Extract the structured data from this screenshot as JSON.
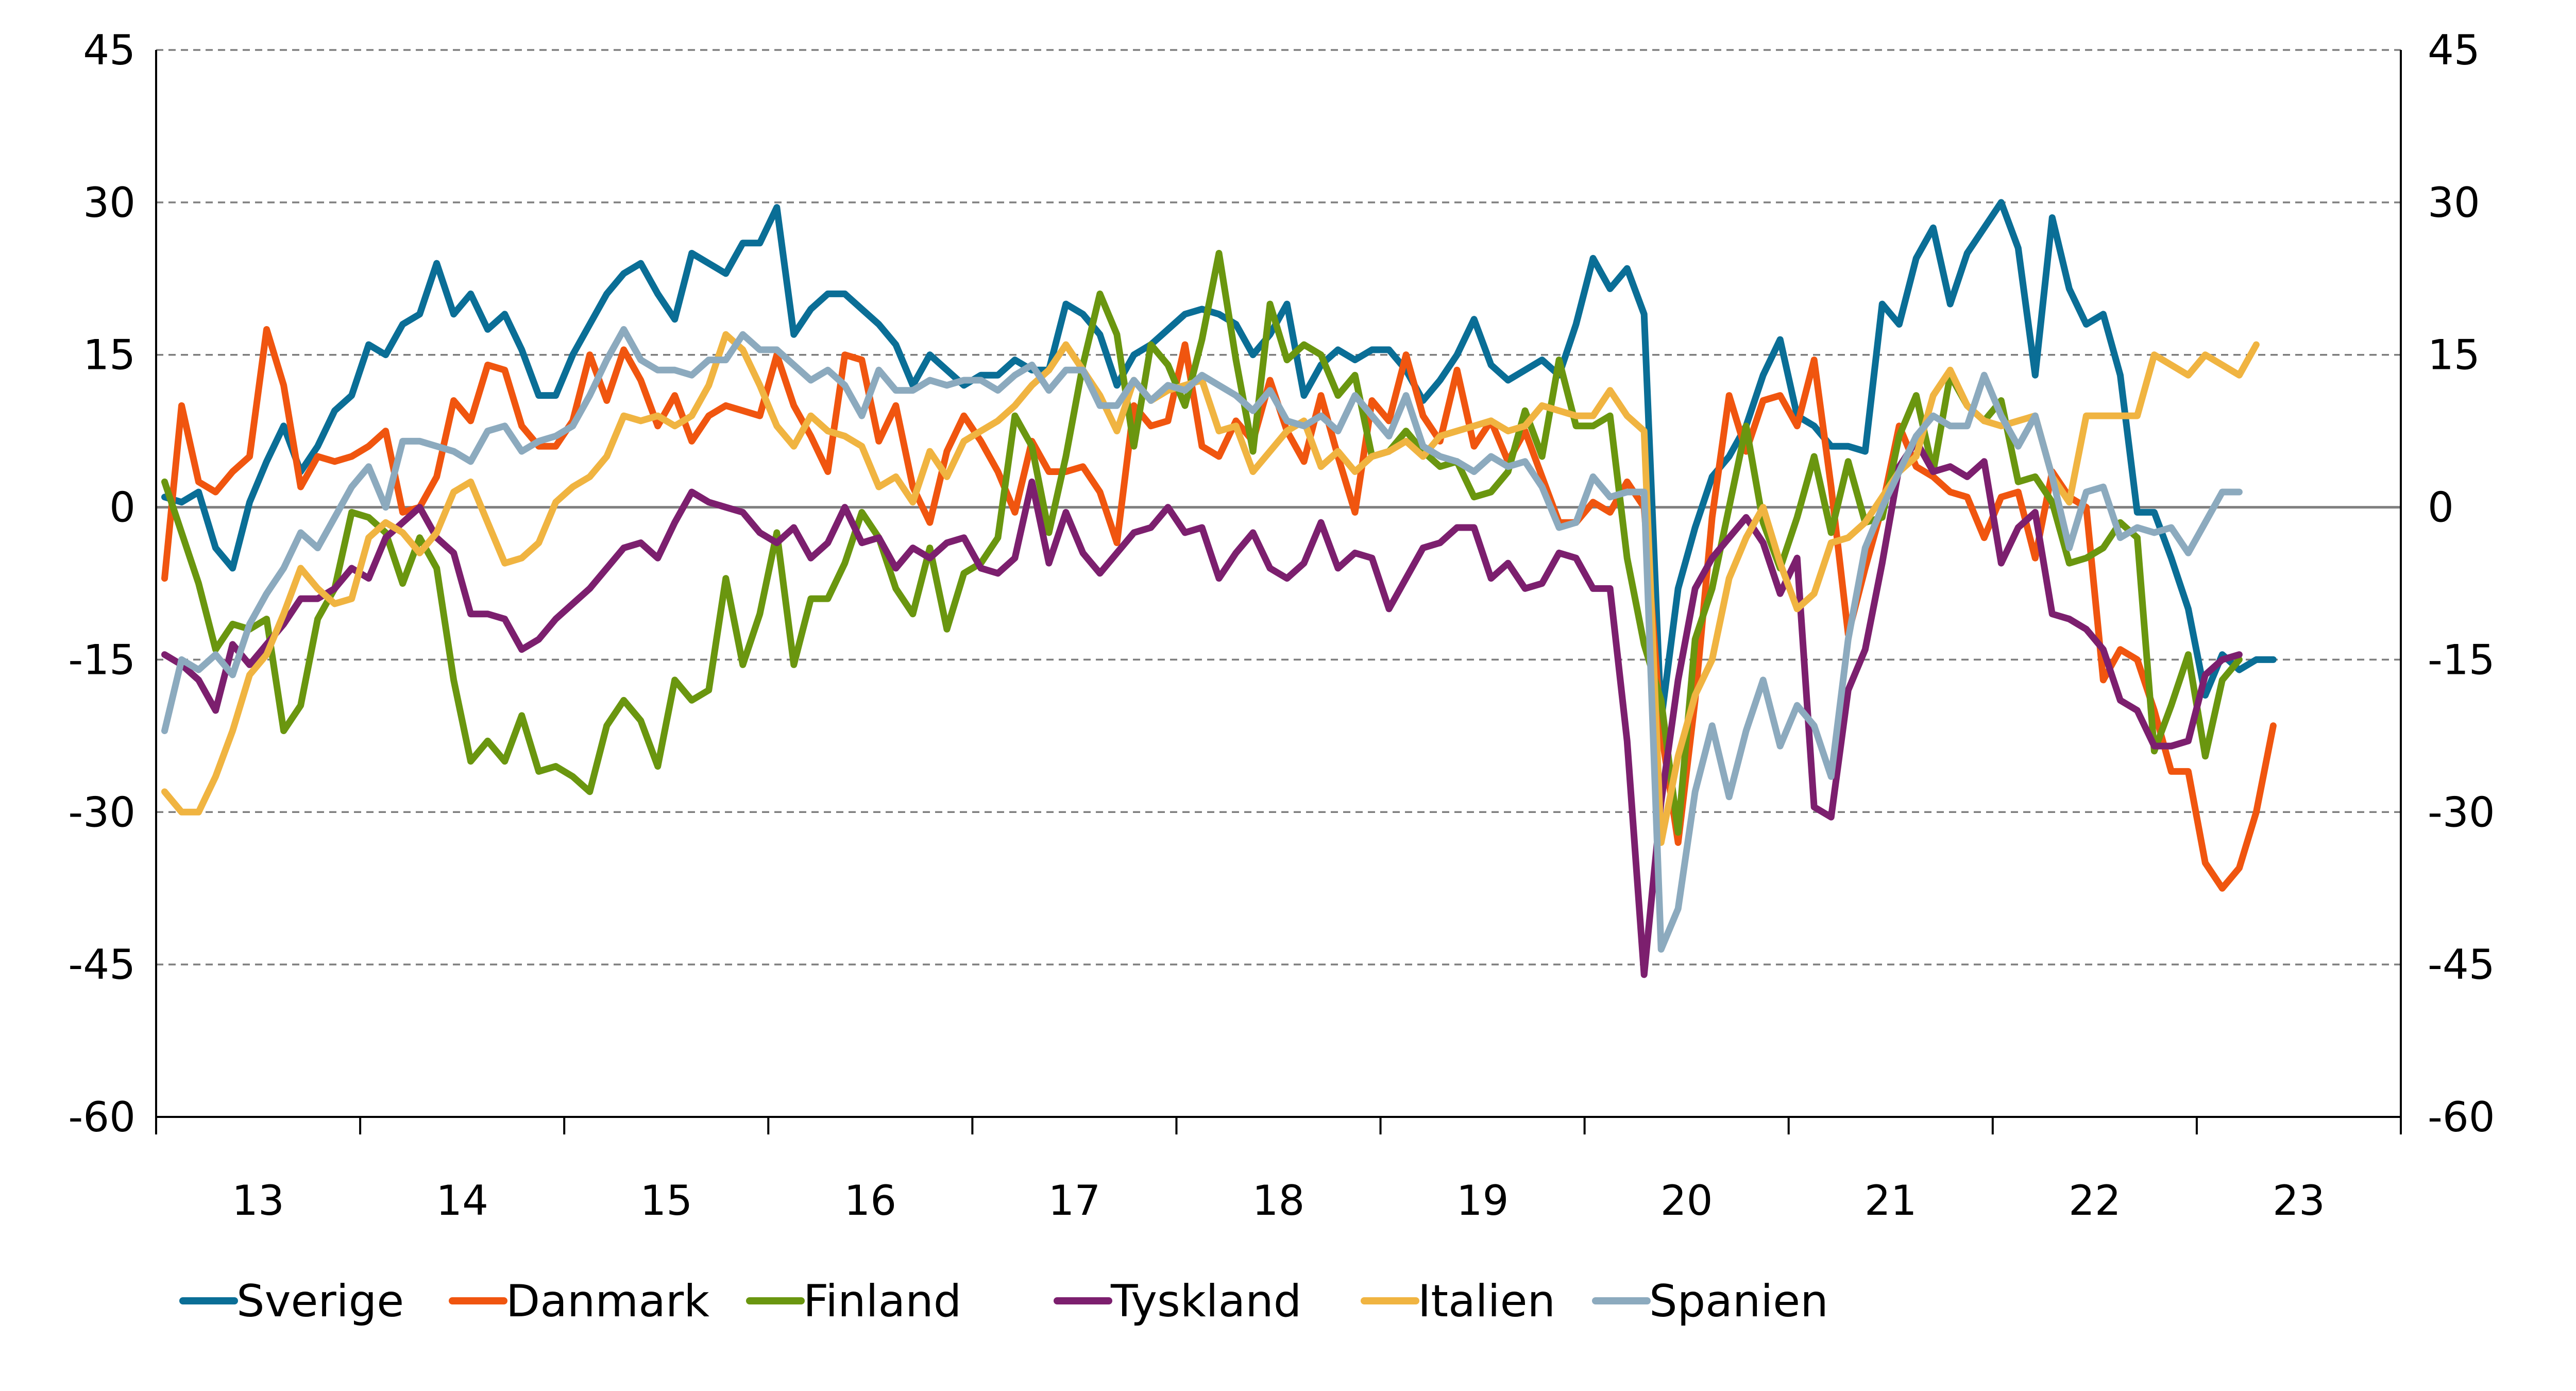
{
  "chart_data": {
    "type": "line",
    "title": "",
    "xlabel": "",
    "ylabel": "",
    "ylim": [
      -60,
      45
    ],
    "yticks": [
      45,
      30,
      15,
      0,
      -15,
      -30,
      -45,
      -60
    ],
    "y_right_ticks": [
      45,
      30,
      15,
      0,
      -15,
      -30,
      -45,
      -60
    ],
    "x_start": "2013-01",
    "x_end": "2023-12",
    "x_tick_labels": [
      "13",
      "14",
      "15",
      "16",
      "17",
      "18",
      "19",
      "20",
      "21",
      "22",
      "23"
    ],
    "grid": true,
    "legend_position": "bottom",
    "series": [
      {
        "name": "Sverige",
        "color": "#0a6e96",
        "values": [
          1.0,
          0.5,
          1.5,
          -4.0,
          -6.0,
          0.5,
          4.5,
          8.0,
          3.5,
          6.0,
          9.5,
          11.0,
          16.0,
          15.0,
          18.0,
          19.0,
          24.0,
          19.0,
          21.0,
          17.5,
          19.0,
          15.5,
          11.0,
          11.0,
          15.0,
          18.0,
          21.0,
          23.0,
          24.0,
          21.0,
          18.5,
          25.0,
          24.0,
          23.0,
          26.0,
          26.0,
          29.5,
          17.0,
          19.5,
          21.0,
          21.0,
          19.5,
          18.0,
          16.0,
          12.0,
          15.0,
          13.5,
          12.0,
          13.0,
          13.0,
          14.5,
          13.5,
          13.5,
          20.0,
          19.0,
          17.0,
          12.0,
          15.0,
          16.0,
          17.5,
          19.0,
          19.5,
          19.0,
          18.0,
          15.0,
          17.0,
          20.0,
          11.0,
          14.0,
          15.5,
          14.5,
          15.5,
          15.5,
          13.5,
          10.5,
          12.5,
          15.0,
          18.5,
          14.0,
          12.5,
          13.5,
          14.5,
          13.0,
          18.0,
          24.5,
          21.5,
          23.5,
          19.0,
          -21.0,
          -8.0,
          -2.0,
          3.0,
          5.0,
          8.0,
          13.0,
          16.5,
          9.0,
          8.0,
          6.0,
          6.0,
          5.5,
          20.0,
          18.0,
          24.5,
          27.5,
          20.0,
          25.0,
          27.5,
          30.0,
          25.5,
          13.0,
          28.5,
          21.5,
          18.0,
          19.0,
          13.0,
          -0.5,
          -0.5,
          -5.0,
          -10.0,
          -18.5,
          -14.5,
          -16.0,
          -15.0,
          -15.0
        ]
      },
      {
        "name": "Danmark",
        "color": "#f0550f",
        "values": [
          -7.0,
          10.0,
          2.5,
          1.5,
          3.5,
          5.0,
          17.5,
          12.0,
          2.0,
          5.0,
          4.5,
          5.0,
          6.0,
          7.5,
          -0.5,
          0.0,
          3.0,
          10.5,
          8.5,
          14.0,
          13.5,
          8.0,
          6.0,
          6.0,
          8.5,
          15.0,
          10.5,
          15.5,
          12.5,
          8.0,
          11.0,
          6.5,
          9.0,
          10.0,
          9.5,
          9.0,
          15.0,
          10.0,
          7.0,
          3.5,
          15.0,
          14.5,
          6.5,
          10.0,
          2.0,
          -1.5,
          5.5,
          9.0,
          6.5,
          3.5,
          -0.5,
          6.5,
          3.5,
          3.5,
          4.0,
          1.5,
          -3.5,
          10.0,
          8.0,
          8.5,
          16.0,
          6.0,
          5.0,
          8.5,
          6.5,
          12.5,
          7.5,
          4.5,
          11.0,
          5.0,
          -0.5,
          10.5,
          8.5,
          15.0,
          9.0,
          6.5,
          13.5,
          6.0,
          8.5,
          4.5,
          7.5,
          3.0,
          -1.5,
          -1.5,
          0.5,
          -0.5,
          2.5,
          0.0,
          -22.0,
          -33.0,
          -19.0,
          -1.0,
          11.0,
          5.5,
          10.5,
          11.0,
          8.0,
          14.5,
          2.0,
          -12.5,
          -6.0,
          0.0,
          8.0,
          4.0,
          3.0,
          1.5,
          1.0,
          -3.0,
          1.0,
          1.5,
          -5.0,
          3.5,
          1.0,
          0.0,
          -17.0,
          -14.0,
          -15.0,
          -20.0,
          -26.0,
          -26.0,
          -35.0,
          -37.5,
          -35.5,
          -30.0,
          -21.5
        ]
      },
      {
        "name": "Finland",
        "color": "#6a960f",
        "values": [
          2.5,
          -2.5,
          -7.5,
          -14.0,
          -11.5,
          -12.0,
          -11.0,
          -22.0,
          -19.5,
          -11.0,
          -8.0,
          -0.5,
          -1.0,
          -2.5,
          -7.5,
          -3.0,
          -6.0,
          -17.0,
          -25.0,
          -23.0,
          -25.0,
          -20.5,
          -26.0,
          -25.5,
          -26.5,
          -28.0,
          -21.5,
          -19.0,
          -21.0,
          -25.5,
          -17.0,
          -19.0,
          -18.0,
          -7.0,
          -15.5,
          -10.5,
          -2.5,
          -15.5,
          -9.0,
          -9.0,
          -5.5,
          -0.5,
          -3.0,
          -8.0,
          -10.5,
          -4.0,
          -12.0,
          -6.5,
          -5.5,
          -3.0,
          9.0,
          6.0,
          -2.5,
          5.0,
          14.0,
          21.0,
          17.0,
          6.0,
          16.0,
          14.0,
          10.0,
          16.5,
          25.0,
          14.5,
          5.5,
          20.0,
          14.5,
          16.0,
          15.0,
          11.0,
          13.0,
          5.0,
          5.5,
          7.5,
          5.5,
          4.0,
          4.5,
          1.0,
          1.5,
          3.5,
          9.5,
          5.0,
          14.5,
          8.0,
          8.0,
          9.0,
          -5.0,
          -13.5,
          -19.0,
          -32.0,
          -13.0,
          -8.0,
          0.0,
          8.0,
          -1.5,
          -6.0,
          -1.0,
          5.0,
          -2.5,
          4.5,
          -1.5,
          -1.0,
          7.0,
          11.0,
          3.5,
          13.0,
          10.0,
          8.5,
          10.5,
          2.5,
          3.0,
          0.5,
          -5.5,
          -5.0,
          -4.0,
          -1.5,
          -3.0,
          -24.0,
          -19.5,
          -14.5,
          -24.5,
          -17.0,
          -15.0
        ]
      },
      {
        "name": "Tyskland",
        "color": "#7c1f6e",
        "values": [
          -14.5,
          -15.5,
          -17.0,
          -20.0,
          -13.5,
          -15.5,
          -13.5,
          -11.5,
          -9.0,
          -9.0,
          -8.0,
          -6.0,
          -7.0,
          -3.0,
          -1.5,
          0.0,
          -3.0,
          -4.5,
          -10.5,
          -10.5,
          -11.0,
          -14.0,
          -13.0,
          -11.0,
          -9.5,
          -8.0,
          -6.0,
          -4.0,
          -3.5,
          -5.0,
          -1.5,
          1.5,
          0.5,
          0.0,
          -0.5,
          -2.5,
          -3.5,
          -2.0,
          -5.0,
          -3.5,
          0.0,
          -3.5,
          -3.0,
          -6.0,
          -4.0,
          -5.0,
          -3.5,
          -3.0,
          -6.0,
          -6.5,
          -5.0,
          2.5,
          -5.5,
          -0.5,
          -4.5,
          -6.5,
          -4.5,
          -2.5,
          -2.0,
          0.0,
          -2.5,
          -2.0,
          -7.0,
          -4.5,
          -2.5,
          -6.0,
          -7.0,
          -5.5,
          -1.5,
          -6.0,
          -4.5,
          -5.0,
          -10.0,
          -7.0,
          -4.0,
          -3.5,
          -2.0,
          -2.0,
          -7.0,
          -5.5,
          -8.0,
          -7.5,
          -4.5,
          -5.0,
          -8.0,
          -8.0,
          -23.0,
          -46.0,
          -29.0,
          -17.0,
          -8.0,
          -5.0,
          -3.0,
          -1.0,
          -3.5,
          -8.5,
          -5.0,
          -29.5,
          -30.5,
          -18.0,
          -14.0,
          -5.5,
          4.0,
          6.5,
          3.5,
          4.0,
          3.0,
          4.5,
          -5.5,
          -2.0,
          -0.5,
          -10.5,
          -11.0,
          -12.0,
          -14.0,
          -19.0,
          -20.0,
          -23.5,
          -23.5,
          -23.0,
          -16.5,
          -15.0,
          -14.5
        ]
      },
      {
        "name": "Italien",
        "color": "#f0b441",
        "values": [
          -28.0,
          -30.0,
          -30.0,
          -26.5,
          -22.0,
          -16.5,
          -14.5,
          -10.5,
          -6.0,
          -8.0,
          -9.5,
          -9.0,
          -3.0,
          -1.5,
          -2.5,
          -4.5,
          -2.5,
          1.5,
          2.5,
          -1.5,
          -5.5,
          -5.0,
          -3.5,
          0.5,
          2.0,
          3.0,
          5.0,
          9.0,
          8.5,
          9.0,
          8.0,
          9.0,
          12.0,
          17.0,
          15.5,
          12.0,
          8.0,
          6.0,
          9.0,
          7.5,
          7.0,
          6.0,
          2.0,
          3.0,
          0.5,
          5.5,
          3.0,
          6.5,
          7.5,
          8.5,
          10.0,
          12.0,
          13.5,
          16.0,
          13.5,
          11.0,
          7.5,
          12.5,
          10.5,
          11.5,
          12.0,
          12.5,
          7.5,
          8.0,
          3.5,
          5.5,
          7.5,
          8.5,
          4.0,
          5.5,
          3.5,
          5.0,
          5.5,
          6.5,
          5.0,
          7.0,
          7.5,
          8.0,
          8.5,
          7.5,
          8.0,
          10.0,
          9.5,
          9.0,
          9.0,
          11.5,
          9.0,
          7.5,
          -33.0,
          -24.5,
          -18.5,
          -15.0,
          -7.0,
          -3.0,
          0.0,
          -5.5,
          -10.0,
          -8.5,
          -3.5,
          -3.0,
          -1.5,
          1.0,
          3.5,
          5.0,
          11.0,
          13.5,
          10.0,
          8.5,
          8.0,
          8.5,
          9.0,
          3.0,
          0.5,
          9.0,
          9.0,
          9.0,
          9.0,
          15.0,
          14.0,
          13.0,
          15.0,
          14.0,
          13.0,
          16.0
        ]
      },
      {
        "name": "Spanien",
        "color": "#8caabe",
        "values": [
          -22.0,
          -15.0,
          -16.0,
          -14.5,
          -16.5,
          -11.5,
          -8.5,
          -6.0,
          -2.5,
          -4.0,
          -1.0,
          2.0,
          4.0,
          0.0,
          6.5,
          6.5,
          6.0,
          5.5,
          4.5,
          7.5,
          8.0,
          5.5,
          6.5,
          7.0,
          8.0,
          11.0,
          14.5,
          17.5,
          14.5,
          13.5,
          13.5,
          13.0,
          14.5,
          14.5,
          17.0,
          15.5,
          15.5,
          14.0,
          12.5,
          13.5,
          12.0,
          9.0,
          13.5,
          11.5,
          11.5,
          12.5,
          12.0,
          12.5,
          12.5,
          11.5,
          13.0,
          14.0,
          11.5,
          13.5,
          13.5,
          10.0,
          10.0,
          12.5,
          10.5,
          12.0,
          11.5,
          13.0,
          12.0,
          11.0,
          9.5,
          11.5,
          8.5,
          8.0,
          9.0,
          7.5,
          11.0,
          9.0,
          7.0,
          11.0,
          6.0,
          5.0,
          4.5,
          3.5,
          5.0,
          4.0,
          4.5,
          2.0,
          -2.0,
          -1.5,
          3.0,
          1.0,
          1.5,
          1.5,
          -43.5,
          -39.5,
          -28.0,
          -21.5,
          -28.5,
          -22.0,
          -17.0,
          -23.5,
          -19.5,
          -21.5,
          -26.5,
          -13.0,
          -4.0,
          0.0,
          3.5,
          7.0,
          9.0,
          8.0,
          8.0,
          13.0,
          9.0,
          6.0,
          9.0,
          3.0,
          -4.0,
          1.5,
          2.0,
          -3.0,
          -2.0,
          -2.5,
          -2.0,
          -4.5,
          -1.5,
          1.5,
          1.5
        ]
      }
    ]
  }
}
